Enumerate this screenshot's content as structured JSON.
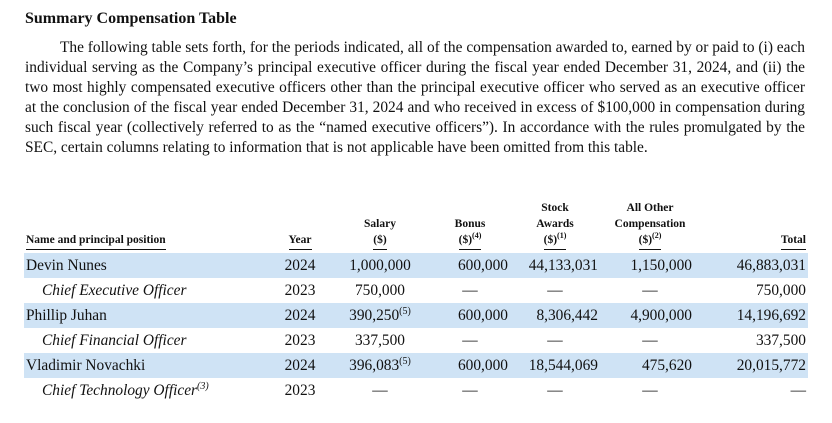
{
  "section_title": "Summary Compensation Table",
  "intro": "The following table sets forth, for the periods indicated, all of the compensation awarded to, earned by or paid to (i) each individual serving as the Company’s principal executive officer during the fiscal year ended December 31, 2024, and (ii) the two most highly compensated executive officers other than the principal executive officer who served as an executive officer at the conclusion of the fiscal year ended December 31, 2024 and who received in excess of $100,000 in compensation during such fiscal year (collectively referred to as the “named executive officers”). In accordance with the rules promulgated by the SEC, certain columns relating to information that is not applicable have been omitted from this table.",
  "headers": {
    "name": "Name and principal position",
    "year": "Year",
    "salary_1": "Salary",
    "salary_2": "($)",
    "bonus_1": "Bonus",
    "bonus_2": "($)",
    "bonus_fn": "(4)",
    "stock_1": "Stock",
    "stock_2": "Awards",
    "stock_3": "($)",
    "stock_fn": "(1)",
    "other_1": "All Other",
    "other_2": "Compensation",
    "other_3": "($)",
    "other_fn": "(2)",
    "total": "Total"
  },
  "rows": [
    {
      "label": "Devin Nunes",
      "year": "2024",
      "salary": "1,000,000",
      "salary_fn": "",
      "bonus": "600,000",
      "stock": "44,133,031",
      "other": "1,150,000",
      "total": "46,883,031"
    },
    {
      "label": "Chief Executive Officer",
      "label_fn": "",
      "year": "2023",
      "salary": "750,000",
      "salary_fn": "",
      "bonus": "—",
      "stock": "—",
      "other": "—",
      "total": "750,000"
    },
    {
      "label": "Phillip Juhan",
      "year": "2024",
      "salary": "390,250",
      "salary_fn": "(5)",
      "bonus": "600,000",
      "stock": "8,306,442",
      "other": "4,900,000",
      "total": "14,196,692"
    },
    {
      "label": "Chief Financial Officer",
      "label_fn": "",
      "year": "2023",
      "salary": "337,500",
      "salary_fn": "",
      "bonus": "—",
      "stock": "—",
      "other": "—",
      "total": "337,500"
    },
    {
      "label": "Vladimir Novachki",
      "year": "2024",
      "salary": "396,083",
      "salary_fn": "(5)",
      "bonus": "600,000",
      "stock": "18,544,069",
      "other": "475,620",
      "total": "20,015,772"
    },
    {
      "label": "Chief Technology Officer",
      "label_fn": "(3)",
      "year": "2023",
      "salary": "—",
      "salary_fn": "",
      "bonus": "—",
      "stock": "—",
      "other": "—",
      "total": "—"
    }
  ]
}
